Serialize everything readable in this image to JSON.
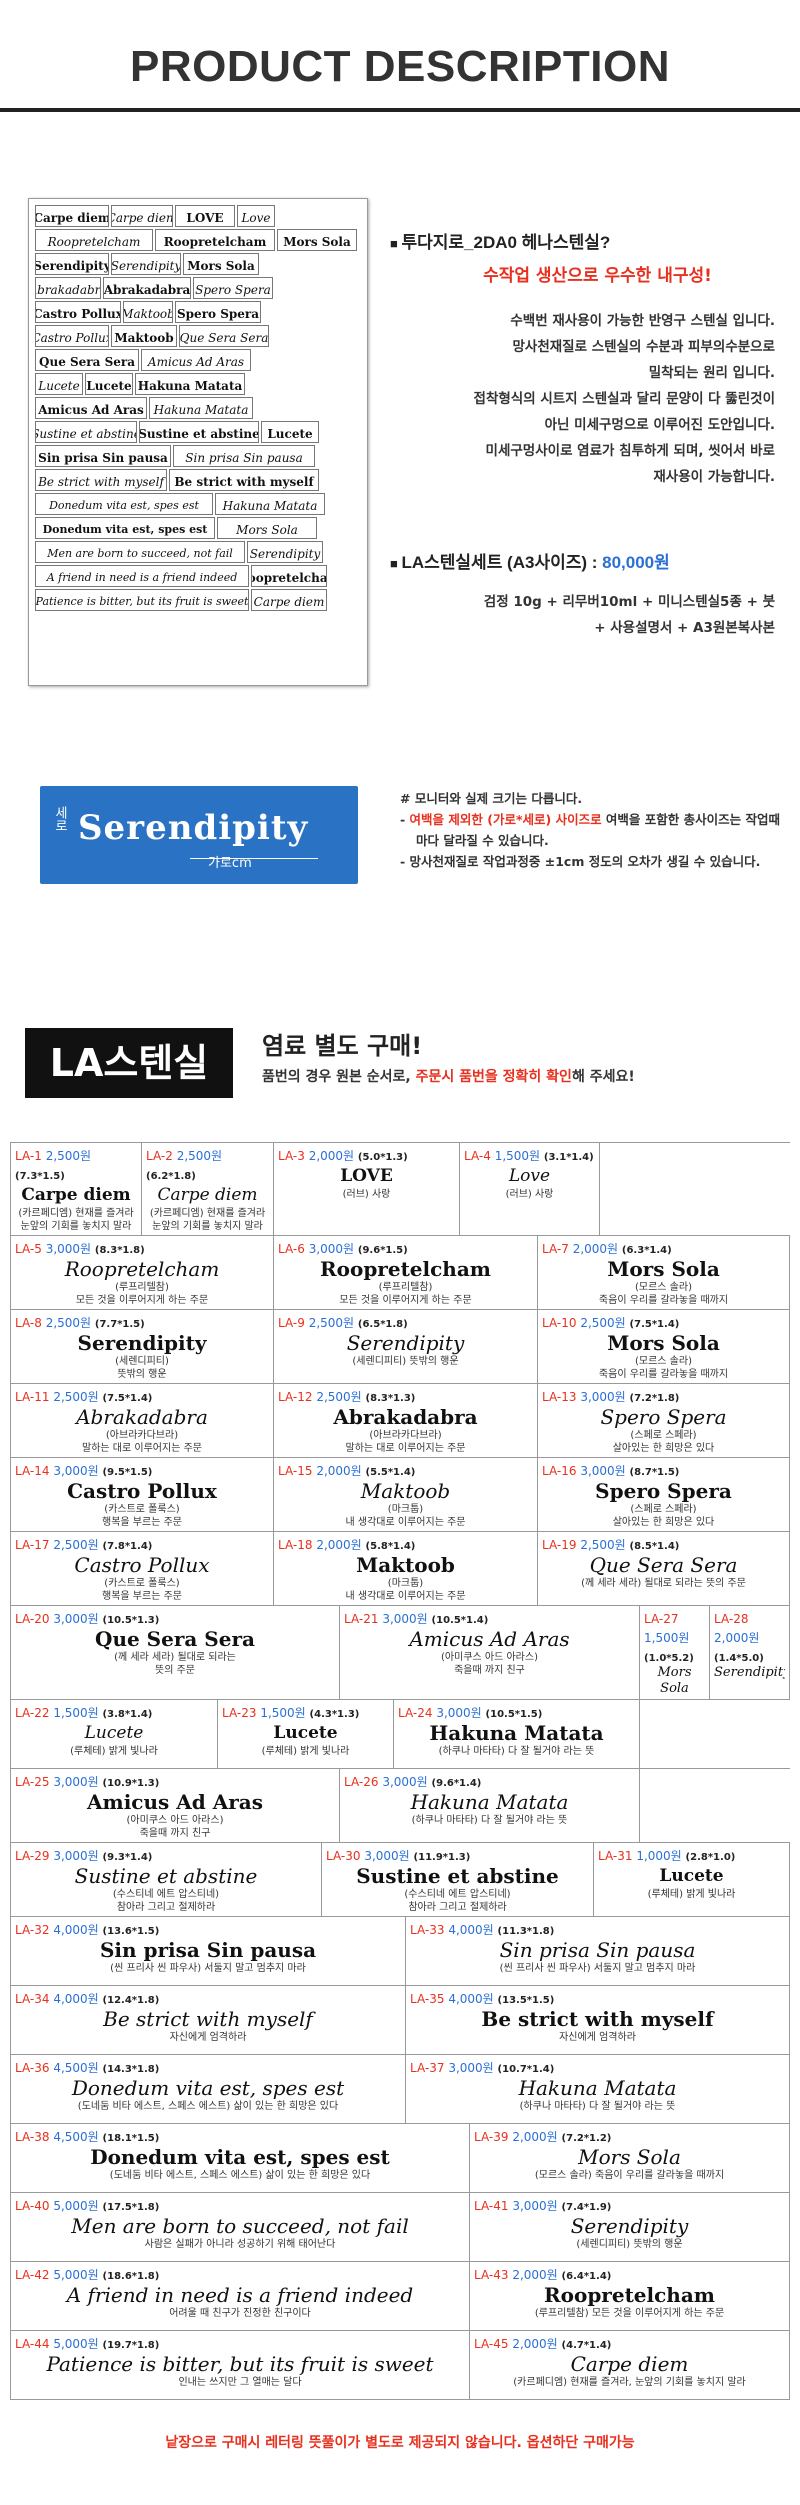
{
  "header": {
    "title": "PRODUCT DESCRIPTION"
  },
  "sheet": {
    "rows": [
      [
        {
          "t": "Carpe diem",
          "w": 74,
          "i": false
        },
        {
          "t": "Carpe diem",
          "w": 62,
          "i": true
        },
        {
          "t": "LOVE",
          "w": 60,
          "i": false
        },
        {
          "t": "Love",
          "w": 38,
          "i": true
        }
      ],
      [
        {
          "t": "Roopretelcham",
          "w": 118,
          "i": true
        },
        {
          "t": "Roopretelcham",
          "w": 120,
          "i": false
        },
        {
          "t": "Mors Sola",
          "w": 80,
          "i": false
        }
      ],
      [
        {
          "t": "Serendipity",
          "w": 74,
          "i": false
        },
        {
          "t": "Serendipity",
          "w": 70,
          "i": true
        },
        {
          "t": "Mors Sola",
          "w": 76,
          "i": false
        },
        {
          "t": "",
          "w": 0,
          "i": false
        }
      ],
      [
        {
          "t": "Abrakadabra",
          "w": 66,
          "i": true
        },
        {
          "t": "Abrakadabra",
          "w": 88,
          "i": false
        },
        {
          "t": "Spero Spera",
          "w": 80,
          "i": true
        }
      ],
      [
        {
          "t": "Castro Pollux",
          "w": 86,
          "i": false
        },
        {
          "t": "Maktoob",
          "w": 50,
          "i": true
        },
        {
          "t": "Spero Spera",
          "w": 86,
          "i": false
        }
      ],
      [
        {
          "t": "Castro Pollux",
          "w": 74,
          "i": true
        },
        {
          "t": "Maktoob",
          "w": 66,
          "i": false
        },
        {
          "t": "Que Sera Sera",
          "w": 90,
          "i": true
        }
      ],
      [
        {
          "t": "Que Sera Sera",
          "w": 104,
          "i": false
        },
        {
          "t": "Amicus Ad Aras",
          "w": 110,
          "i": true
        }
      ],
      [
        {
          "t": "Lucete",
          "w": 48,
          "i": true
        },
        {
          "t": "Lucete",
          "w": 48,
          "i": false
        },
        {
          "t": "Hakuna Matata",
          "w": 110,
          "i": false
        }
      ],
      [
        {
          "t": "Amicus Ad Aras",
          "w": 112,
          "i": false
        },
        {
          "t": "Hakuna Matata",
          "w": 104,
          "i": true
        }
      ],
      [
        {
          "t": "Sustine et abstine",
          "w": 102,
          "i": true
        },
        {
          "t": "Sustine et abstine",
          "w": 120,
          "i": false
        },
        {
          "t": "Lucete",
          "w": 58,
          "i": false
        }
      ],
      [
        {
          "t": "Sin prisa Sin pausa",
          "w": 136,
          "i": false
        },
        {
          "t": "Sin prisa Sin pausa",
          "w": 142,
          "i": true
        }
      ],
      [
        {
          "t": "Be strict with myself",
          "w": 132,
          "i": true
        },
        {
          "t": "Be strict with myself",
          "w": 150,
          "i": false
        }
      ],
      [
        {
          "t": "Donedum vita est, spes est",
          "w": 178,
          "i": true
        },
        {
          "t": "Hakuna Matata",
          "w": 110,
          "i": true
        }
      ],
      [
        {
          "t": "Donedum vita est, spes est",
          "w": 180,
          "i": false
        },
        {
          "t": "Mors Sola",
          "w": 100,
          "i": true
        }
      ],
      [
        {
          "t": "Men are born to succeed, not fail",
          "w": 210,
          "i": true
        },
        {
          "t": "Serendipity",
          "w": 76,
          "i": true
        }
      ],
      [
        {
          "t": "A friend in need is a friend indeed",
          "w": 214,
          "i": true
        },
        {
          "t": "Roopretelcham",
          "w": 76,
          "i": false
        }
      ],
      [
        {
          "t": "Patience is bitter, but its fruit is sweet",
          "w": 214,
          "i": true
        },
        {
          "t": "Carpe diem",
          "w": 76,
          "i": true
        }
      ]
    ]
  },
  "info": {
    "heading": "투다지로_2DA0 헤나스텐실?",
    "tagline": "수작업 생산으로 우수한 내구성!",
    "desc": [
      "수백번 재사용이 가능한 반영구 스텐실 입니다.",
      "망사천재질로 스텐실의 수분과 피부의수분으로",
      "밀착되는 원리 입니다.",
      "접착형식의 시트지 스텐실과 달리 문양이 다 뚫린것이",
      "아닌 미세구멍으로 이루어진 도안입니다.",
      "미세구멍사이로 염료가 침투하게 되며, 씻어서 바로",
      "재사용이 가능합니다."
    ],
    "price_label": "LA스텐실세트 (A3사이즈) : ",
    "price_value": "80,000원",
    "includes": [
      "검정 10g + 리무버10ml + 미니스텐실5종 + 붓",
      "+ 사용설명서 + A3원본복사본"
    ]
  },
  "sample": {
    "tag": "세로",
    "word": "Serendipity",
    "unit": "가로cm"
  },
  "notes": {
    "n1": "# 모니터와 실제 크기는 다릅니다.",
    "n2a": "- ",
    "n2hl": "여백을 제외한 (가로*세로) 사이즈로",
    "n2b": " 여백을 포함한 총사이즈는 작업때 마다 달라질 수 있습니다.",
    "n3": "- 망사천재질로 작업과정중 ±1cm 정도의 오차가 생길 수 있습니다."
  },
  "la": {
    "badge": "LA스텐실",
    "title": "염료 별도 구매!",
    "sub_a": "품번의 경우 원본 순서로, ",
    "sub_hl": "주문시 품번을 정확히 확인",
    "sub_b": "해 주세요!"
  },
  "grid": [
    [
      {
        "code": "LA-1",
        "price": "2,500원",
        "size": "(7.3*1.5)",
        "txt": "Carpe diem",
        "i": false,
        "pron": "(카르페디엠) 현재를 즐겨라",
        "mean": "눈앞의 기회를 놓치지 말라",
        "w": 132
      },
      {
        "code": "LA-2",
        "price": "2,500원",
        "size": "(6.2*1.8)",
        "txt": "Carpe diem",
        "i": true,
        "pron": "(카르페디엠) 현재를 즐겨라",
        "mean": "눈앞의 기회를 놓치지 말라",
        "w": 132
      },
      {
        "code": "LA-3",
        "price": "2,000원",
        "size": "(5.0*1.3)",
        "txt": "LOVE",
        "i": false,
        "pron": "(러브) 사랑",
        "mean": "",
        "w": 186
      },
      {
        "code": "LA-4",
        "price": "1,500원",
        "size": "(3.1*1.4)",
        "txt": "Love",
        "i": true,
        "pron": "(러브) 사랑",
        "mean": "",
        "w": 140
      }
    ],
    [
      {
        "code": "LA-5",
        "price": "3,000원",
        "size": "(8.3*1.8)",
        "txt": "Roopretelcham",
        "i": true,
        "pron": "(루프리텔참)",
        "mean": "모든 것을 이루어지게 하는 주문",
        "w": 264
      },
      {
        "code": "LA-6",
        "price": "3,000원",
        "size": "(9.6*1.5)",
        "txt": "Roopretelcham",
        "i": false,
        "pron": "(루프리텔참)",
        "mean": "모든 것을 이루어지게 하는 주문",
        "w": 264
      },
      {
        "code": "LA-7",
        "price": "2,000원",
        "size": "(6.3*1.4)",
        "txt": "Mors Sola",
        "i": false,
        "pron": "(모르스 솔라)",
        "mean": "죽음이 우리를 갈라놓을 때까지",
        "w": 252
      }
    ],
    [
      {
        "code": "LA-8",
        "price": "2,500원",
        "size": "(7.7*1.5)",
        "txt": "Serendipity",
        "i": false,
        "pron": "(세렌디피티)",
        "mean": "뜻밖의 행운",
        "w": 264
      },
      {
        "code": "LA-9",
        "price": "2,500원",
        "size": "(6.5*1.8)",
        "txt": "Serendipity",
        "i": true,
        "pron": "(세렌디피티) 뜻밖의 행운",
        "mean": "",
        "w": 264
      },
      {
        "code": "LA-10",
        "price": "2,500원",
        "size": "(7.5*1.4)",
        "txt": "Mors Sola",
        "i": false,
        "pron": "(모르스 솔라)",
        "mean": "죽음이 우리를 갈라놓을 때까지",
        "w": 252
      }
    ],
    [
      {
        "code": "LA-11",
        "price": "2,500원",
        "size": "(7.5*1.4)",
        "txt": "Abrakadabra",
        "i": true,
        "pron": "(아브라카다브라)",
        "mean": "말하는 대로 이루어지는 주문",
        "w": 264
      },
      {
        "code": "LA-12",
        "price": "2,500원",
        "size": "(8.3*1.3)",
        "txt": "Abrakadabra",
        "i": false,
        "pron": "(아브라카다브라)",
        "mean": "말하는 대로 이루어지는 주문",
        "w": 264
      },
      {
        "code": "LA-13",
        "price": "3,000원",
        "size": "(7.2*1.8)",
        "txt": "Spero Spera",
        "i": true,
        "pron": "(스페로 스페라)",
        "mean": "살아있는 한 희망은 있다",
        "w": 252
      }
    ],
    [
      {
        "code": "LA-14",
        "price": "3,000원",
        "size": "(9.5*1.5)",
        "txt": "Castro Pollux",
        "i": false,
        "pron": "(카스트로 폴룩스)",
        "mean": "행복을 부르는 주문",
        "w": 264
      },
      {
        "code": "LA-15",
        "price": "2,000원",
        "size": "(5.5*1.4)",
        "txt": "Maktoob",
        "i": true,
        "pron": "(마크툽)",
        "mean": "내 생각대로 이루어지는 주문",
        "w": 264
      },
      {
        "code": "LA-16",
        "price": "3,000원",
        "size": "(8.7*1.5)",
        "txt": "Spero Spera",
        "i": false,
        "pron": "(스페로 스페라)",
        "mean": "살아있는 한 희망은 있다",
        "w": 252
      }
    ],
    [
      {
        "code": "LA-17",
        "price": "2,500원",
        "size": "(7.8*1.4)",
        "txt": "Castro Pollux",
        "i": true,
        "pron": "(카스트로 폴룩스)",
        "mean": "행복을 부르는 주문",
        "w": 264
      },
      {
        "code": "LA-18",
        "price": "2,000원",
        "size": "(5.8*1.4)",
        "txt": "Maktoob",
        "i": false,
        "pron": "(마크툽)",
        "mean": "내 생각대로 이루어지는 주문",
        "w": 264
      },
      {
        "code": "LA-19",
        "price": "2,500원",
        "size": "(8.5*1.4)",
        "txt": "Que Sera Sera",
        "i": true,
        "pron": "(께 세라 세라) 될대로 되라는 뜻의 주문",
        "mean": "",
        "w": 252
      }
    ],
    [
      {
        "code": "LA-20",
        "price": "3,000원",
        "size": "(10.5*1.3)",
        "txt": "Que Sera Sera",
        "i": false,
        "pron": "(께 세라 세라) 될대로 되라는",
        "mean": "뜻의 주문",
        "w": 330
      },
      {
        "code": "LA-21",
        "price": "3,000원",
        "size": "(10.5*1.4)",
        "txt": "Amicus Ad Aras",
        "i": true,
        "pron": "(아미쿠스 아드 아라스)",
        "mean": "죽을때 까지 친구",
        "w": 300
      },
      {
        "code": "LA-27",
        "price": "1,500원",
        "size": "(1.0*5.2)",
        "txt": "Mors Sola",
        "i": true,
        "pron": "",
        "mean": "",
        "w": 70,
        "v": true
      },
      {
        "code": "LA-28",
        "price": "2,000원",
        "size": "(1.4*5.0)",
        "txt": "Serendipity",
        "i": true,
        "pron": "",
        "mean": "",
        "w": 80,
        "v": true
      }
    ],
    [
      {
        "code": "LA-22",
        "price": "1,500원",
        "size": "(3.8*1.4)",
        "txt": "Lucete",
        "i": true,
        "pron": "(루체테) 밝게 빛나라",
        "mean": "",
        "w": 208
      },
      {
        "code": "LA-23",
        "price": "1,500원",
        "size": "(4.3*1.3)",
        "txt": "Lucete",
        "i": false,
        "pron": "(루체테) 밝게 빛나라",
        "mean": "",
        "w": 176
      },
      {
        "code": "LA-24",
        "price": "3,000원",
        "size": "(10.5*1.5)",
        "txt": "Hakuna Matata",
        "i": false,
        "pron": "(하쿠나 마타타) 다 잘 될거야 라는 뜻",
        "mean": "",
        "w": 246
      }
    ],
    [
      {
        "code": "LA-25",
        "price": "3,000원",
        "size": "(10.9*1.3)",
        "txt": "Amicus Ad Aras",
        "i": false,
        "pron": "(아미쿠스 아드 아라스)",
        "mean": "죽을때 까지 친구",
        "w": 330
      },
      {
        "code": "LA-26",
        "price": "3,000원",
        "size": "(9.6*1.4)",
        "txt": "Hakuna Matata",
        "i": true,
        "pron": "(하쿠나 마타타) 다 잘 될거야 라는 뜻",
        "mean": "",
        "w": 300
      }
    ],
    [
      {
        "code": "LA-29",
        "price": "3,000원",
        "size": "(9.3*1.4)",
        "txt": "Sustine et abstine",
        "i": true,
        "pron": "(수스티네 에트 압스티네)",
        "mean": "참아라 그리고 절제하라",
        "w": 312
      },
      {
        "code": "LA-30",
        "price": "3,000원",
        "size": "(11.9*1.3)",
        "txt": "Sustine et abstine",
        "i": false,
        "pron": "(수스티네 에트 압스티네)",
        "mean": "참아라 그리고 절제하라",
        "w": 272
      },
      {
        "code": "LA-31",
        "price": "1,000원",
        "size": "(2.8*1.0)",
        "txt": "Lucete",
        "i": false,
        "pron": "(루체테) 밝게 빛나라",
        "mean": "",
        "w": 196
      }
    ],
    [
      {
        "code": "LA-32",
        "price": "4,000원",
        "size": "(13.6*1.5)",
        "txt": "Sin prisa Sin pausa",
        "i": false,
        "pron": "(씬 프리사 씬 파우사) 서둘지 말고 멈추지 마라",
        "mean": "",
        "w": 396
      },
      {
        "code": "LA-33",
        "price": "4,000원",
        "size": "(11.3*1.8)",
        "txt": "Sin prisa Sin pausa",
        "i": true,
        "pron": "(씬 프리사 씬 파우사) 서둘지 말고 멈추지 마라",
        "mean": "",
        "w": 384
      }
    ],
    [
      {
        "code": "LA-34",
        "price": "4,000원",
        "size": "(12.4*1.8)",
        "txt": "Be strict with myself",
        "i": true,
        "pron": "자신에게 엄격하라",
        "mean": "",
        "w": 396
      },
      {
        "code": "LA-35",
        "price": "4,000원",
        "size": "(13.5*1.5)",
        "txt": "Be strict with myself",
        "i": false,
        "pron": "자신에게 엄격하라",
        "mean": "",
        "w": 384
      }
    ],
    [
      {
        "code": "LA-36",
        "price": "4,500원",
        "size": "(14.3*1.8)",
        "txt": "Donedum vita est, spes est",
        "i": true,
        "pron": "(도네둠 비타 에스트, 스페스 에스트) 삶이 있는 한 희망은 있다",
        "mean": "",
        "w": 396
      },
      {
        "code": "LA-37",
        "price": "3,000원",
        "size": "(10.7*1.4)",
        "txt": "Hakuna Matata",
        "i": true,
        "pron": "(하쿠나 마타타) 다 잘 될거야 라는 뜻",
        "mean": "",
        "w": 384
      }
    ],
    [
      {
        "code": "LA-38",
        "price": "4,500원",
        "size": "(18.1*1.5)",
        "txt": "Donedum vita est, spes est",
        "i": false,
        "pron": "(도네둠 비타 에스트, 스페스 에스트) 삶이 있는 한 희망은 있다",
        "mean": "",
        "w": 460
      },
      {
        "code": "LA-39",
        "price": "2,000원",
        "size": "(7.2*1.2)",
        "txt": "Mors Sola",
        "i": true,
        "pron": "(모르스 솔라) 죽음이 우리를 갈라놓을 때까지",
        "mean": "",
        "w": 320
      }
    ],
    [
      {
        "code": "LA-40",
        "price": "5,000원",
        "size": "(17.5*1.8)",
        "txt": "Men are born to succeed, not fail",
        "i": true,
        "pron": "사람은 실패가 아니라 성공하기 위해 태어난다",
        "mean": "",
        "w": 460
      },
      {
        "code": "LA-41",
        "price": "3,000원",
        "size": "(7.4*1.9)",
        "txt": "Serendipity",
        "i": true,
        "pron": "(세렌디피티) 뜻밖의 행운",
        "mean": "",
        "w": 320
      }
    ],
    [
      {
        "code": "LA-42",
        "price": "5,000원",
        "size": "(18.6*1.8)",
        "txt": "A friend in need is a friend indeed",
        "i": true,
        "pron": "어려울 때 친구가 진정한 친구이다",
        "mean": "",
        "w": 460
      },
      {
        "code": "LA-43",
        "price": "2,000원",
        "size": "(6.4*1.4)",
        "txt": "Roopretelcham",
        "i": false,
        "pron": "(루프리텔참) 모든 것을 이루어지게 하는 주문",
        "mean": "",
        "w": 320
      }
    ],
    [
      {
        "code": "LA-44",
        "price": "5,000원",
        "size": "(19.7*1.8)",
        "txt": "Patience is bitter, but its fruit is sweet",
        "i": true,
        "pron": "인내는 쓰지만 그 열매는 달다",
        "mean": "",
        "w": 460
      },
      {
        "code": "LA-45",
        "price": "2,000원",
        "size": "(4.7*1.4)",
        "txt": "Carpe diem",
        "i": true,
        "pron": "(카르페디엠) 현재를 즐겨라, 눈앞의 기회를 놓치지 말라",
        "mean": "",
        "w": 320
      }
    ]
  ],
  "footer": "낱장으로 구매시 레터링 뜻풀이가 별도로 제공되지 않습니다. 옵션하단 구매가능"
}
